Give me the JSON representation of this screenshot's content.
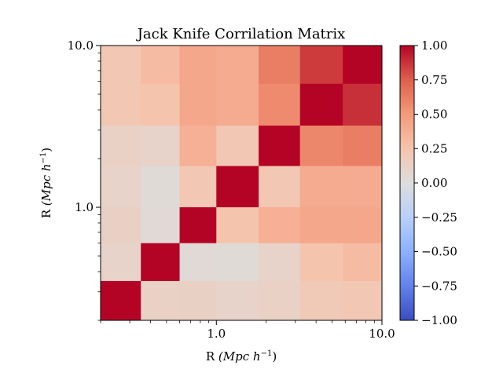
{
  "chart_data": {
    "type": "heatmap",
    "title": "Jack Knife Corrilation Matrix",
    "xlabel": {
      "prefix": "R",
      "unit": "(Mpc h",
      "exp": "−1",
      "close": ")"
    },
    "ylabel": {
      "prefix": "R",
      "unit": "(Mpc h",
      "exp": "−1",
      "close": ")"
    },
    "x_scale": "log",
    "y_scale": "log",
    "xlim": [
      0.2,
      10.0
    ],
    "ylim": [
      0.2,
      10.0
    ],
    "bin_edges": [
      0.2,
      0.35,
      0.6,
      1.0,
      1.8,
      3.2,
      5.8,
      10.0
    ],
    "x_tick_labels": [
      {
        "value": 1.0,
        "label": "1.0"
      },
      {
        "value": 10.0,
        "label": "10.0"
      }
    ],
    "y_tick_labels": [
      {
        "value": 1.0,
        "label": "1.0"
      },
      {
        "value": 10.0,
        "label": "10.0"
      }
    ],
    "minor_ticks": [
      0.2,
      0.3,
      0.4,
      0.5,
      0.6,
      0.7,
      0.8,
      0.9,
      2,
      3,
      4,
      5,
      6,
      7,
      8,
      9
    ],
    "matrix_rows_top_to_bottom": [
      [
        0.22,
        0.3,
        0.42,
        0.4,
        0.62,
        0.85,
        1.0
      ],
      [
        0.22,
        0.25,
        0.42,
        0.4,
        0.57,
        1.0,
        0.88
      ],
      [
        0.12,
        0.1,
        0.37,
        0.22,
        1.0,
        0.58,
        0.62
      ],
      [
        0.1,
        0.03,
        0.22,
        1.0,
        0.22,
        0.4,
        0.4
      ],
      [
        0.13,
        0.04,
        1.0,
        0.25,
        0.37,
        0.42,
        0.42
      ],
      [
        0.1,
        1.0,
        0.04,
        0.03,
        0.1,
        0.25,
        0.3
      ],
      [
        1.0,
        0.12,
        0.13,
        0.1,
        0.12,
        0.2,
        0.22
      ]
    ],
    "colorbar": {
      "colormap": "coolwarm",
      "vmin": -1.0,
      "vmax": 1.0,
      "ticks": [
        "1.00",
        "0.75",
        "0.50",
        "0.25",
        "0.00",
        "−0.25",
        "−0.50",
        "−0.75",
        "−1.00"
      ],
      "tick_values": [
        1.0,
        0.75,
        0.5,
        0.25,
        0.0,
        -0.25,
        -0.5,
        -0.75,
        -1.0
      ]
    }
  }
}
